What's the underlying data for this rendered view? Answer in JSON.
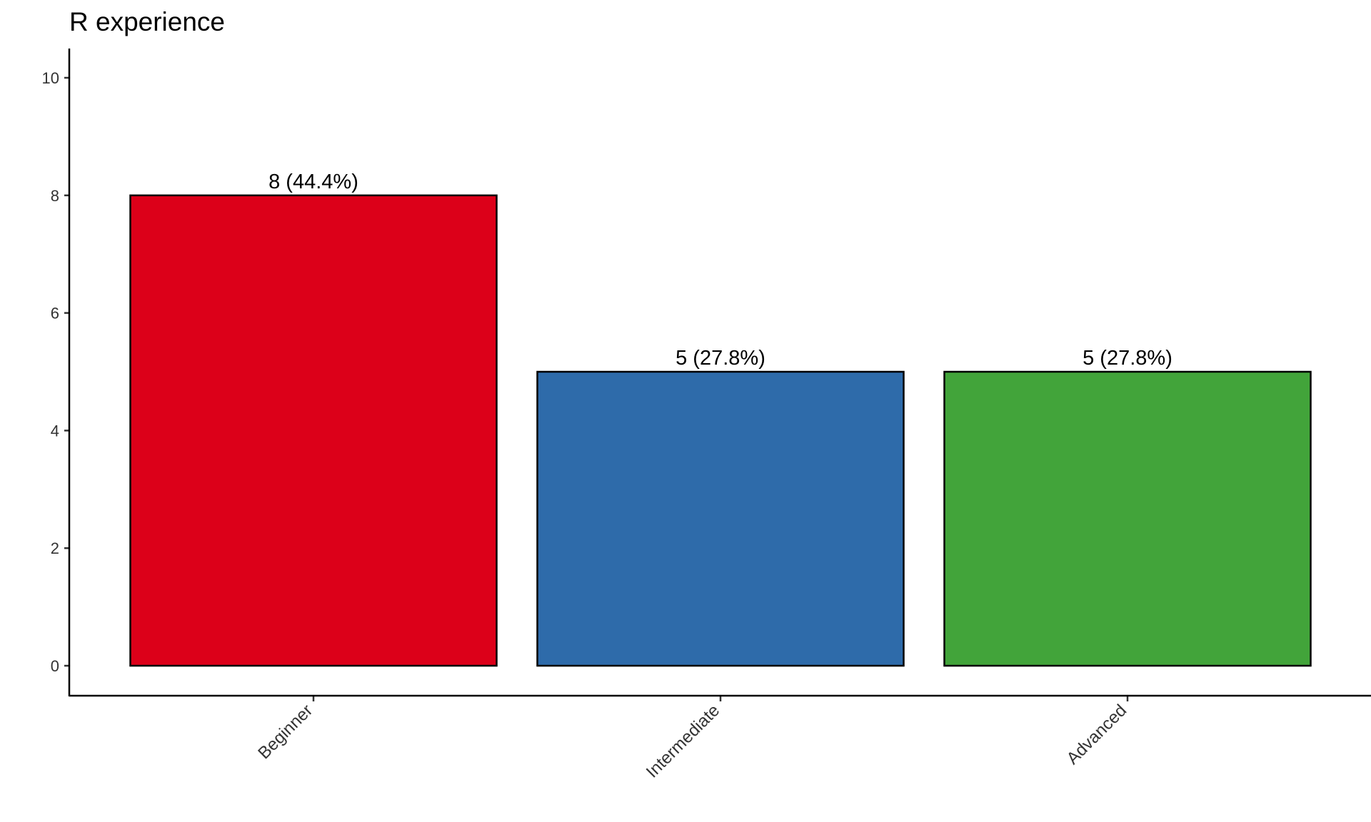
{
  "chart_data": {
    "type": "bar",
    "title": "R experience",
    "categories": [
      "Beginner",
      "Intermediate",
      "Advanced"
    ],
    "values": [
      8,
      5,
      5
    ],
    "data_labels": [
      "8 (44.4%)",
      "5 (27.8%)",
      "5 (27.8%)"
    ],
    "colors": [
      "#DC0019",
      "#2E6BAA",
      "#42A43A"
    ],
    "y_ticks": [
      0,
      2,
      4,
      6,
      8,
      10
    ],
    "ylim": [
      -0.5,
      10.5
    ],
    "xlabel": "",
    "ylabel": "",
    "grid": false,
    "legend": "none"
  }
}
